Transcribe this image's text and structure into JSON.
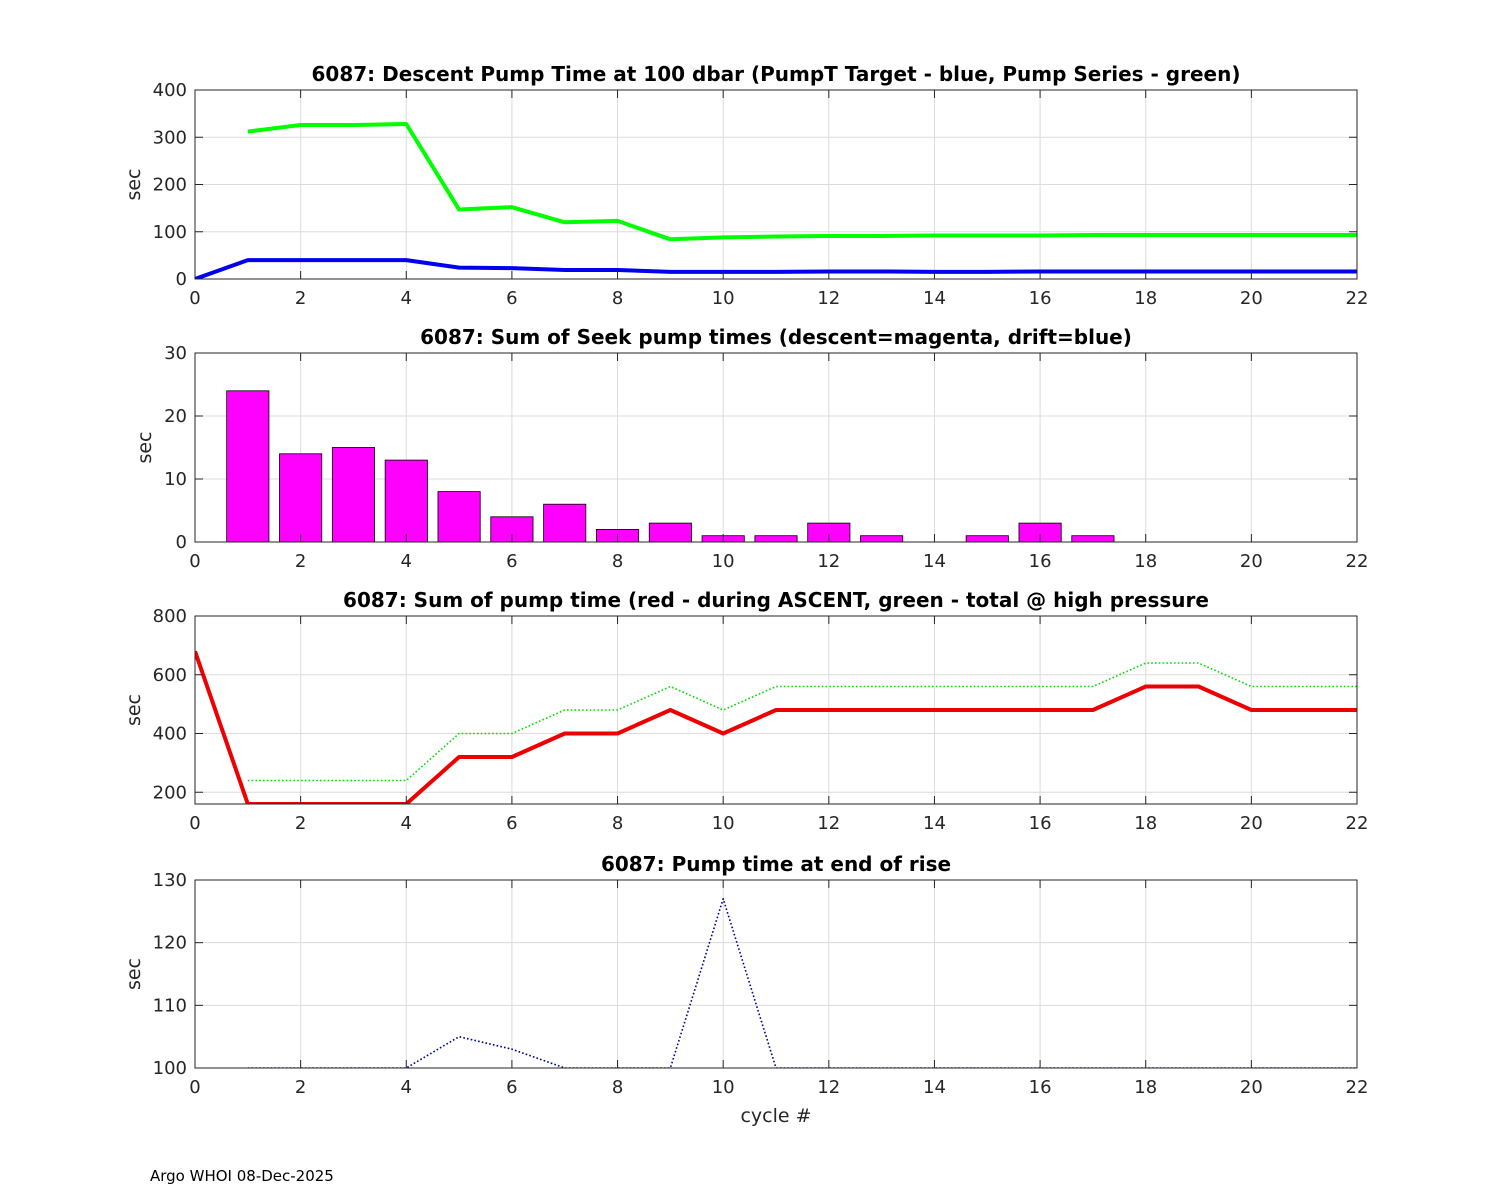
{
  "footer": "Argo WHOI 08-Dec-2025",
  "chart_data": [
    {
      "type": "line",
      "title": "6087: Descent Pump Time at 100 dbar (PumpT Target - blue, Pump Series - green)",
      "xlabel": "",
      "ylabel": "sec",
      "xlim": [
        0,
        22
      ],
      "ylim": [
        0,
        400
      ],
      "xticks": [
        0,
        2,
        4,
        6,
        8,
        10,
        12,
        14,
        16,
        18,
        20,
        22
      ],
      "yticks": [
        0,
        100,
        200,
        300,
        400
      ],
      "grid": true,
      "series": [
        {
          "name": "Pump Series",
          "color": "#00ff00",
          "style": "solid-thick",
          "x": [
            1,
            2,
            3,
            4,
            5,
            6,
            7,
            8,
            9,
            10,
            11,
            12,
            13,
            14,
            15,
            16,
            17,
            18,
            19,
            20,
            21,
            22
          ],
          "y": [
            312,
            326,
            326,
            328,
            147,
            152,
            120,
            123,
            84,
            88,
            90,
            91,
            91,
            92,
            92,
            92,
            93,
            93,
            93,
            93,
            93,
            93
          ]
        },
        {
          "name": "PumpT Target",
          "color": "#0000ee",
          "style": "solid-thick",
          "x": [
            0,
            1,
            2,
            3,
            4,
            5,
            6,
            7,
            8,
            9,
            10,
            11,
            12,
            13,
            14,
            15,
            16,
            17,
            18,
            19,
            20,
            21,
            22
          ],
          "y": [
            0,
            40,
            40,
            40,
            40,
            24,
            23,
            19,
            19,
            15,
            15,
            15,
            16,
            16,
            15,
            15,
            16,
            16,
            16,
            16,
            16,
            16,
            16
          ]
        }
      ]
    },
    {
      "type": "bar",
      "title": "6087: Sum of Seek pump times (descent=magenta, drift=blue)",
      "xlabel": "",
      "ylabel": "sec",
      "xlim": [
        0,
        22
      ],
      "ylim": [
        0,
        30
      ],
      "xticks": [
        0,
        2,
        4,
        6,
        8,
        10,
        12,
        14,
        16,
        18,
        20,
        22
      ],
      "yticks": [
        0,
        10,
        20,
        30
      ],
      "grid": true,
      "bar_color": "#ff00ff",
      "bar_width": 0.8,
      "x": [
        1,
        2,
        3,
        4,
        5,
        6,
        7,
        8,
        9,
        10,
        11,
        12,
        13,
        14,
        15,
        16,
        17,
        18,
        19,
        20,
        21
      ],
      "values": [
        24,
        14,
        15,
        13,
        8,
        4,
        6,
        2,
        3,
        1,
        1,
        3,
        1,
        0,
        1,
        3,
        1,
        0,
        0,
        0,
        0
      ]
    },
    {
      "type": "line",
      "title": "6087: Sum of pump time (red - during ASCENT, green - total @ high pressure",
      "xlabel": "",
      "ylabel": "sec",
      "xlim": [
        0,
        22
      ],
      "ylim": [
        160,
        800
      ],
      "xticks": [
        0,
        2,
        4,
        6,
        8,
        10,
        12,
        14,
        16,
        18,
        20,
        22
      ],
      "yticks": [
        200,
        400,
        600,
        800
      ],
      "grid": true,
      "series": [
        {
          "name": "total @ high pressure",
          "color": "#00dd00",
          "style": "dotted",
          "x": [
            1,
            2,
            3,
            4,
            5,
            6,
            7,
            8,
            9,
            10,
            11,
            12,
            13,
            14,
            15,
            16,
            17,
            18,
            19,
            20,
            21,
            22
          ],
          "y": [
            240,
            240,
            240,
            240,
            400,
            400,
            480,
            480,
            560,
            480,
            560,
            560,
            560,
            560,
            560,
            560,
            560,
            640,
            640,
            560,
            560,
            560
          ]
        },
        {
          "name": "during ASCENT",
          "color": "#ee0000",
          "style": "solid-thick",
          "x": [
            0,
            1,
            2,
            3,
            4,
            5,
            6,
            7,
            8,
            9,
            10,
            11,
            12,
            13,
            14,
            15,
            16,
            17,
            18,
            19,
            20,
            21,
            22
          ],
          "y": [
            680,
            160,
            160,
            160,
            160,
            320,
            320,
            400,
            400,
            480,
            400,
            480,
            480,
            480,
            480,
            480,
            480,
            480,
            560,
            560,
            480,
            480,
            480
          ]
        }
      ]
    },
    {
      "type": "line",
      "title": "6087: Pump time at end of rise",
      "xlabel": "cycle #",
      "ylabel": "sec",
      "xlim": [
        0,
        22
      ],
      "ylim": [
        100,
        130
      ],
      "xticks": [
        0,
        2,
        4,
        6,
        8,
        10,
        12,
        14,
        16,
        18,
        20,
        22
      ],
      "yticks": [
        100,
        110,
        120,
        130
      ],
      "grid": true,
      "series": [
        {
          "name": "end of rise",
          "color": "#000099",
          "style": "dotted",
          "x": [
            1,
            2,
            3,
            4,
            5,
            6,
            7,
            8,
            9,
            10,
            11,
            12,
            13,
            14,
            15,
            16,
            17,
            18,
            19,
            20,
            21,
            22
          ],
          "y": [
            100,
            100,
            100,
            100,
            105,
            103,
            100,
            100,
            100,
            127,
            100,
            100,
            100,
            100,
            100,
            100,
            100,
            100,
            100,
            100,
            100,
            100
          ]
        }
      ]
    }
  ]
}
